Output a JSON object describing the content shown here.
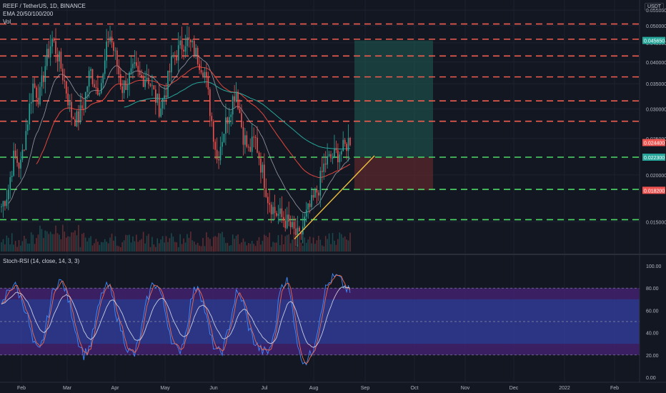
{
  "header": {
    "symbol_line": "REEF / TetherUS, 1D, BINANCE",
    "indicator_line": "EMA 20/50/100/200",
    "volume_label": "Vol",
    "currency": "USDT"
  },
  "rsi_panel": {
    "label": "Stoch-RSI (14, close, 14, 3, 3)"
  },
  "colors": {
    "background": "#131722",
    "up": "#26a69a",
    "down": "#ef5350",
    "resistance": "#f05d4f",
    "support": "#4cd964",
    "ema_fast": "#d1d4dc",
    "ema_mid": "#e0463c",
    "ema_slow": "#26a69a",
    "rsi_k": "#3d8bff",
    "rsi_d": "#f06a4a",
    "rsi_band": "#2a3a8a",
    "rsi_zone": "#4a237a"
  },
  "chart_data": [
    {
      "type": "line",
      "name": "price",
      "y_axis": {
        "ticks": [
          "0.055000",
          "0.050000",
          "0.045000",
          "0.040000",
          "0.035000",
          "0.030000",
          "0.025000",
          "0.020000",
          "0.015000"
        ],
        "scale": "log",
        "range": [
          0.0125,
          0.0575
        ]
      },
      "x_axis": {
        "ticks": [
          "Feb",
          "Mar",
          "Apr",
          "May",
          "Jun",
          "Jul",
          "Aug",
          "Sep",
          "Oct",
          "Nov",
          "Dec",
          "2022",
          "Feb"
        ]
      },
      "resistance_levels": [
        0.0505,
        0.046,
        0.0415,
        0.0365,
        0.0315,
        0.0278
      ],
      "support_levels": [
        0.0223,
        0.0183,
        0.0152
      ],
      "price_close_series": [
        0.0165,
        0.018,
        0.0225,
        0.021,
        0.027,
        0.035,
        0.032,
        0.04,
        0.046,
        0.041,
        0.035,
        0.029,
        0.028,
        0.031,
        0.038,
        0.034,
        0.036,
        0.048,
        0.041,
        0.034,
        0.036,
        0.038,
        0.036,
        0.037,
        0.033,
        0.03,
        0.034,
        0.041,
        0.043,
        0.046,
        0.044,
        0.041,
        0.038,
        0.029,
        0.022,
        0.026,
        0.03,
        0.034,
        0.026,
        0.023,
        0.025,
        0.021,
        0.0175,
        0.016,
        0.0155,
        0.015,
        0.0142,
        0.0135,
        0.0155,
        0.0168,
        0.0185,
        0.0215,
        0.0222,
        0.0228,
        0.0235,
        0.025
      ],
      "price_tags": [
        {
          "value": "0.045650",
          "price": 0.04565,
          "color": "#26a69a"
        },
        {
          "value": "0.024400",
          "price": 0.0244,
          "color": "#ef5350"
        },
        {
          "value": "0.022300",
          "price": 0.0223,
          "color": "#26a69a"
        },
        {
          "value": "0.018200",
          "price": 0.0182,
          "color": "#ef5350"
        }
      ],
      "position": {
        "entry": 0.0223,
        "target": 0.04565,
        "stop": 0.0182
      },
      "trendline": {
        "from": 0.0135,
        "to": 0.0225
      }
    },
    {
      "type": "line",
      "name": "stoch_rsi",
      "y_axis": {
        "ticks": [
          "100.00",
          "80.00",
          "60.00",
          "40.00",
          "20.00",
          "0.00"
        ],
        "range": [
          0,
          100
        ]
      },
      "levels": {
        "upper": 80,
        "lower": 20,
        "inner_upper": 70,
        "inner_lower": 30
      },
      "k_series": [
        62,
        78,
        84,
        72,
        58,
        30,
        22,
        45,
        74,
        88,
        80,
        60,
        35,
        20,
        28,
        55,
        78,
        82,
        60,
        40,
        24,
        20,
        40,
        70,
        86,
        78,
        55,
        30,
        22,
        38,
        72,
        84,
        62,
        35,
        22,
        25,
        48,
        75,
        70,
        45,
        30,
        24,
        22,
        36,
        82,
        88,
        58,
        20,
        14,
        22,
        48,
        78,
        88,
        90,
        82,
        76
      ]
    }
  ]
}
